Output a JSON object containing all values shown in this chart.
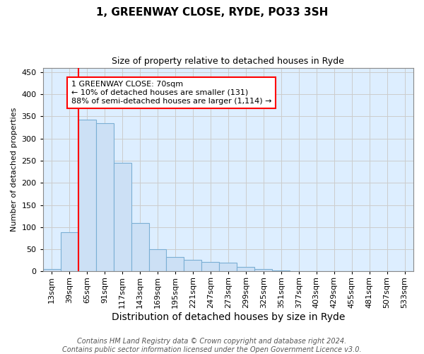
{
  "title": "1, GREENWAY CLOSE, RYDE, PO33 3SH",
  "subtitle": "Size of property relative to detached houses in Ryde",
  "xlabel": "Distribution of detached houses by size in Ryde",
  "ylabel": "Number of detached properties",
  "bar_color": "#cce0f5",
  "bar_edge_color": "#7bafd4",
  "categories": [
    "13sqm",
    "39sqm",
    "65sqm",
    "91sqm",
    "117sqm",
    "143sqm",
    "169sqm",
    "195sqm",
    "221sqm",
    "247sqm",
    "273sqm",
    "299sqm",
    "325sqm",
    "351sqm",
    "377sqm",
    "403sqm",
    "429sqm",
    "455sqm",
    "481sqm",
    "507sqm",
    "533sqm"
  ],
  "values": [
    5,
    88,
    343,
    335,
    245,
    109,
    50,
    33,
    26,
    22,
    20,
    10,
    5,
    2,
    1,
    1,
    0,
    1,
    0,
    0,
    1
  ],
  "ylim": [
    0,
    460
  ],
  "yticks": [
    0,
    50,
    100,
    150,
    200,
    250,
    300,
    350,
    400,
    450
  ],
  "property_line_x": 2.0,
  "annotation_line1": "1 GREENWAY CLOSE: 70sqm",
  "annotation_line2": "← 10% of detached houses are smaller (131)",
  "annotation_line3": "88% of semi-detached houses are larger (1,114) →",
  "annotation_box_facecolor": "white",
  "annotation_box_edgecolor": "red",
  "grid_color": "#cccccc",
  "bg_color": "#ddeeff",
  "footer_line1": "Contains HM Land Registry data © Crown copyright and database right 2024.",
  "footer_line2": "Contains public sector information licensed under the Open Government Licence v3.0.",
  "title_fontsize": 11,
  "subtitle_fontsize": 9,
  "xlabel_fontsize": 10,
  "ylabel_fontsize": 8,
  "tick_fontsize": 8,
  "annotation_fontsize": 8,
  "footer_fontsize": 7
}
